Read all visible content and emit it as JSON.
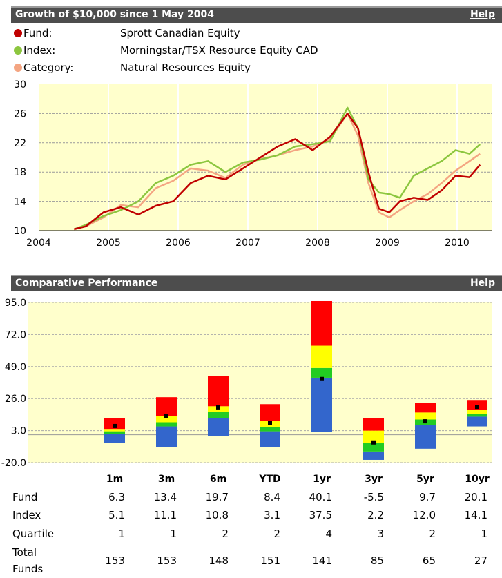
{
  "growth_panel": {
    "title": "Growth of $10,000 since 1 May 2004",
    "help": "Help",
    "legend": [
      {
        "label": "Fund:",
        "value": "Sprott Canadian Equity",
        "color": "#c00000"
      },
      {
        "label": "Index:",
        "value": "Morningstar/TSX Resource Equity CAD",
        "color": "#8cc63f"
      },
      {
        "label": "Category:",
        "value": "Natural Resources Equity",
        "color": "#f4a582"
      }
    ]
  },
  "perf_panel": {
    "title": "Comparative Performance",
    "help": "Help"
  },
  "table": {
    "row_labels": {
      "fund": "Fund",
      "index": "Index",
      "quartile": "Quartile",
      "total1": "Total",
      "total2": "Funds"
    },
    "rows": {
      "fund": [
        "6.3",
        "13.4",
        "19.7",
        "8.4",
        "40.1",
        "-5.5",
        "9.7",
        "20.1"
      ],
      "index": [
        "5.1",
        "11.1",
        "10.8",
        "3.1",
        "37.5",
        "2.2",
        "12.0",
        "14.1"
      ],
      "quartile": [
        "1",
        "1",
        "2",
        "2",
        "4",
        "3",
        "2",
        "1"
      ],
      "total": [
        "153",
        "153",
        "148",
        "151",
        "141",
        "85",
        "65",
        "27"
      ]
    }
  },
  "chart_data": [
    {
      "type": "line",
      "title": "Growth of $10,000 since 1 May 2004",
      "x_ticks": [
        "2004",
        "2005",
        "2006",
        "2007",
        "2008",
        "2009",
        "2010"
      ],
      "ylim": [
        10,
        30
      ],
      "y_ticks": [
        10,
        14,
        18,
        22,
        26,
        30
      ],
      "grid": true,
      "x": [
        2004.33,
        2004.5,
        2004.75,
        2005.0,
        2005.25,
        2005.5,
        2005.75,
        2006.0,
        2006.25,
        2006.5,
        2006.75,
        2007.0,
        2007.25,
        2007.5,
        2007.75,
        2008.0,
        2008.25,
        2008.4,
        2008.55,
        2008.7,
        2008.85,
        2009.0,
        2009.2,
        2009.4,
        2009.6,
        2009.8,
        2010.0,
        2010.15
      ],
      "series": [
        {
          "name": "Fund",
          "color": "#c00000",
          "values": [
            10.2,
            10.6,
            12.5,
            13.2,
            12.2,
            13.4,
            14.0,
            16.5,
            17.5,
            17.0,
            18.5,
            20.0,
            21.5,
            22.5,
            21.0,
            22.8,
            26.0,
            24.0,
            18.0,
            13.0,
            12.5,
            14.0,
            14.5,
            14.2,
            15.5,
            17.5,
            17.3,
            19.0
          ]
        },
        {
          "name": "Index",
          "color": "#8cc63f",
          "values": [
            10.2,
            10.8,
            12.0,
            12.8,
            14.0,
            16.5,
            17.5,
            19.0,
            19.5,
            18.0,
            19.3,
            19.7,
            20.3,
            21.5,
            21.8,
            22.2,
            26.8,
            24.0,
            17.0,
            15.2,
            15.0,
            14.5,
            17.5,
            18.5,
            19.5,
            21.0,
            20.5,
            21.8
          ]
        },
        {
          "name": "Category",
          "color": "#f4a582",
          "values": [
            10.2,
            10.6,
            11.8,
            13.5,
            13.2,
            15.8,
            16.8,
            18.5,
            18.2,
            17.2,
            19.0,
            19.8,
            20.3,
            21.0,
            21.5,
            22.5,
            26.0,
            23.0,
            16.5,
            12.5,
            11.8,
            12.8,
            14.0,
            15.0,
            16.5,
            18.2,
            19.5,
            20.5
          ]
        }
      ]
    },
    {
      "type": "bar",
      "title": "Comparative Performance",
      "categories": [
        "1m",
        "3m",
        "6m",
        "YTD",
        "1yr",
        "3yr",
        "5yr",
        "10yr"
      ],
      "ylim": [
        -20,
        95
      ],
      "y_ticks": [
        -20.0,
        3.0,
        26.0,
        49.0,
        72.0,
        95.0
      ],
      "quartile_bands": [
        [
          {
            "from": -6,
            "to": 0.5,
            "color": "#3366cc"
          },
          {
            "from": 0.5,
            "to": 2.5,
            "color": "#22cc22"
          },
          {
            "from": 2.5,
            "to": 4.2,
            "color": "#ffff00"
          },
          {
            "from": 4.2,
            "to": 12,
            "color": "#ff0000"
          }
        ],
        [
          {
            "from": -9,
            "to": 6,
            "color": "#3366cc"
          },
          {
            "from": 6,
            "to": 9,
            "color": "#22cc22"
          },
          {
            "from": 9,
            "to": 13.5,
            "color": "#ffff00"
          },
          {
            "from": 13.5,
            "to": 27,
            "color": "#ff0000"
          }
        ],
        [
          {
            "from": -1,
            "to": 12,
            "color": "#3366cc"
          },
          {
            "from": 12,
            "to": 16.5,
            "color": "#22cc22"
          },
          {
            "from": 16.5,
            "to": 20.5,
            "color": "#ffff00"
          },
          {
            "from": 20.5,
            "to": 42,
            "color": "#ff0000"
          }
        ],
        [
          {
            "from": -9,
            "to": 2.5,
            "color": "#3366cc"
          },
          {
            "from": 2.5,
            "to": 5.5,
            "color": "#22cc22"
          },
          {
            "from": 5.5,
            "to": 10,
            "color": "#ffff00"
          },
          {
            "from": 10,
            "to": 22,
            "color": "#ff0000"
          }
        ],
        [
          {
            "from": 2,
            "to": 41,
            "color": "#3366cc"
          },
          {
            "from": 41,
            "to": 48,
            "color": "#22cc22"
          },
          {
            "from": 48,
            "to": 64,
            "color": "#ffff00"
          },
          {
            "from": 64,
            "to": 96,
            "color": "#ff0000"
          }
        ],
        [
          {
            "from": -18,
            "to": -12,
            "color": "#3366cc"
          },
          {
            "from": -12,
            "to": -6,
            "color": "#22cc22"
          },
          {
            "from": -6,
            "to": 3,
            "color": "#ffff00"
          },
          {
            "from": 3,
            "to": 12,
            "color": "#ff0000"
          }
        ],
        [
          {
            "from": -10,
            "to": 7,
            "color": "#3366cc"
          },
          {
            "from": 7,
            "to": 11,
            "color": "#22cc22"
          },
          {
            "from": 11,
            "to": 16,
            "color": "#ffff00"
          },
          {
            "from": 16,
            "to": 23,
            "color": "#ff0000"
          }
        ],
        [
          {
            "from": 6,
            "to": 13,
            "color": "#3366cc"
          },
          {
            "from": 13,
            "to": 15,
            "color": "#22cc22"
          },
          {
            "from": 15,
            "to": 18,
            "color": "#ffff00"
          },
          {
            "from": 18,
            "to": 25,
            "color": "#ff0000"
          }
        ]
      ],
      "fund_marker": [
        6.3,
        13.4,
        19.7,
        8.4,
        40.1,
        -5.5,
        9.7,
        20.1
      ]
    }
  ]
}
